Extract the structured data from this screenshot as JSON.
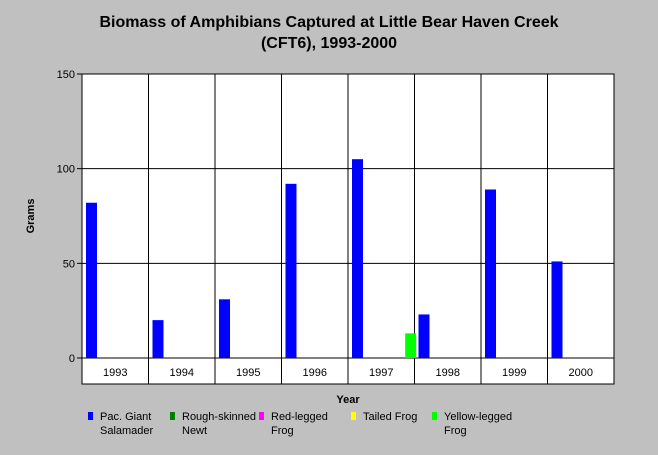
{
  "chart_data": {
    "type": "bar",
    "title": "Biomass of Amphibians Captured at Little Bear Haven Creek",
    "subtitle": "(CFT6), 1993-2000",
    "xlabel": "Year",
    "ylabel": "Grams",
    "ylim": [
      0,
      150
    ],
    "yticks": [
      0,
      50,
      100,
      150
    ],
    "grid": true,
    "legend_position": "bottom",
    "categories": [
      "1993",
      "1994",
      "1995",
      "1996",
      "1997",
      "1998",
      "1999",
      "2000"
    ],
    "series": [
      {
        "name": "Pac. Giant\nSalamader",
        "color": "#0000ff",
        "values": [
          82,
          20,
          31,
          92,
          105,
          23,
          89,
          51
        ]
      },
      {
        "name": "Rough-skinned\nNewt",
        "color": "#008000",
        "values": [
          0,
          0,
          0,
          0,
          0,
          0,
          0,
          0
        ]
      },
      {
        "name": "Red-legged\nFrog",
        "color": "#ff00ff",
        "values": [
          0,
          0,
          0,
          0,
          0,
          0,
          0,
          0
        ]
      },
      {
        "name": "Tailed Frog",
        "color": "#ffff00",
        "values": [
          0,
          0,
          0,
          0,
          0,
          0,
          0,
          0
        ]
      },
      {
        "name": "Yellow-legged\nFrog",
        "color": "#00ff00",
        "values": [
          0,
          0,
          0,
          0,
          13,
          0,
          0,
          0
        ]
      }
    ]
  }
}
